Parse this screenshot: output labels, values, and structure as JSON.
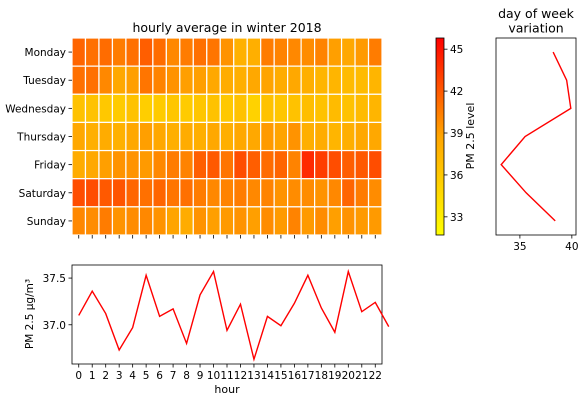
{
  "chart_data": [
    {
      "type": "heatmap",
      "title": "hourly average in winter 2018",
      "rows": [
        "Monday",
        "Tuesday",
        "Wednesday",
        "Thursday",
        "Friday",
        "Saturday",
        "Sunday"
      ],
      "columns": [
        0,
        1,
        2,
        3,
        4,
        5,
        6,
        7,
        8,
        9,
        10,
        11,
        12,
        13,
        14,
        15,
        16,
        17,
        18,
        19,
        20,
        21,
        22
      ],
      "values": [
        [
          41.5,
          41.0,
          41.2,
          40.5,
          41.0,
          41.8,
          41.2,
          40.0,
          40.5,
          41.0,
          40.8,
          39.5,
          37.8,
          38.0,
          40.5,
          40.2,
          40.0,
          39.8,
          40.2,
          39.0,
          38.5,
          39.2,
          40.5
        ],
        [
          41.0,
          41.0,
          40.0,
          38.5,
          39.0,
          40.8,
          40.2,
          39.5,
          39.0,
          39.0,
          38.5,
          38.2,
          38.0,
          38.5,
          38.8,
          38.2,
          38.5,
          38.0,
          37.5,
          37.5,
          37.0,
          37.0,
          37.5
        ],
        [
          36.5,
          36.5,
          36.0,
          35.8,
          36.5,
          35.5,
          35.8,
          36.2,
          35.8,
          36.2,
          36.5,
          36.0,
          36.5,
          35.2,
          36.5,
          36.2,
          36.5,
          36.8,
          36.5,
          37.0,
          36.5,
          37.0,
          37.5
        ],
        [
          38.5,
          38.0,
          38.2,
          37.8,
          38.5,
          39.0,
          38.5,
          38.0,
          38.2,
          38.0,
          38.5,
          38.0,
          38.5,
          38.5,
          39.2,
          38.8,
          39.5,
          38.0,
          38.2,
          37.5,
          38.0,
          38.5,
          38.5
        ],
        [
          38.2,
          38.5,
          39.0,
          39.5,
          39.5,
          39.2,
          40.0,
          40.5,
          40.2,
          41.8,
          42.0,
          40.8,
          42.5,
          41.8,
          41.2,
          41.5,
          40.2,
          44.0,
          43.2,
          42.5,
          41.8,
          42.0,
          42.5
        ],
        [
          42.5,
          42.5,
          42.0,
          42.2,
          41.5,
          41.0,
          41.5,
          40.8,
          41.0,
          40.5,
          40.0,
          40.2,
          40.5,
          40.0,
          40.2,
          39.5,
          39.8,
          39.8,
          39.5,
          40.0,
          41.5,
          40.5,
          39.8
        ],
        [
          40.0,
          39.8,
          40.5,
          39.5,
          39.8,
          40.0,
          39.5,
          38.8,
          38.2,
          39.5,
          39.0,
          39.2,
          39.5,
          39.0,
          39.8,
          39.2,
          40.2,
          39.2,
          39.8,
          39.0,
          39.5,
          39.2,
          39.2
        ]
      ],
      "colorbar": {
        "label": "PM 2.5 level",
        "range": [
          31.7,
          45.8
        ],
        "ticks": [
          33,
          36,
          39,
          42,
          45
        ]
      },
      "colormap": [
        "#ffff00",
        "#ffa500",
        "#ff0000"
      ]
    },
    {
      "type": "line",
      "title": "day of week\nvariation",
      "x": [
        38.2,
        39.5,
        39.9,
        35.5,
        33.2,
        35.6,
        38.4
      ],
      "y": [
        "Monday",
        "Tuesday",
        "Wednesday",
        "Thursday",
        "Friday",
        "Saturday",
        "Sunday"
      ],
      "xlim": [
        32.7,
        40.4
      ],
      "xticks": [
        35,
        40
      ],
      "color": "#ff0000"
    },
    {
      "type": "line",
      "xlabel": "hour",
      "ylabel": "PM 2.5 μg/m³",
      "x": [
        0,
        1,
        2,
        3,
        4,
        5,
        6,
        7,
        8,
        9,
        10,
        11,
        12,
        13,
        14,
        15,
        16,
        17,
        18,
        19,
        20,
        21,
        22,
        23
      ],
      "values": [
        37.1,
        37.36,
        37.12,
        36.73,
        36.97,
        37.53,
        37.09,
        37.17,
        36.8,
        37.32,
        37.57,
        36.94,
        37.22,
        36.63,
        37.09,
        36.99,
        37.23,
        37.53,
        37.18,
        36.92,
        37.57,
        37.14,
        37.24,
        36.98
      ],
      "xlim": [
        -0.5,
        22.5
      ],
      "ylim": [
        36.58,
        37.64
      ],
      "yticks": [
        37.0,
        37.5
      ],
      "color": "#ff0000"
    }
  ]
}
